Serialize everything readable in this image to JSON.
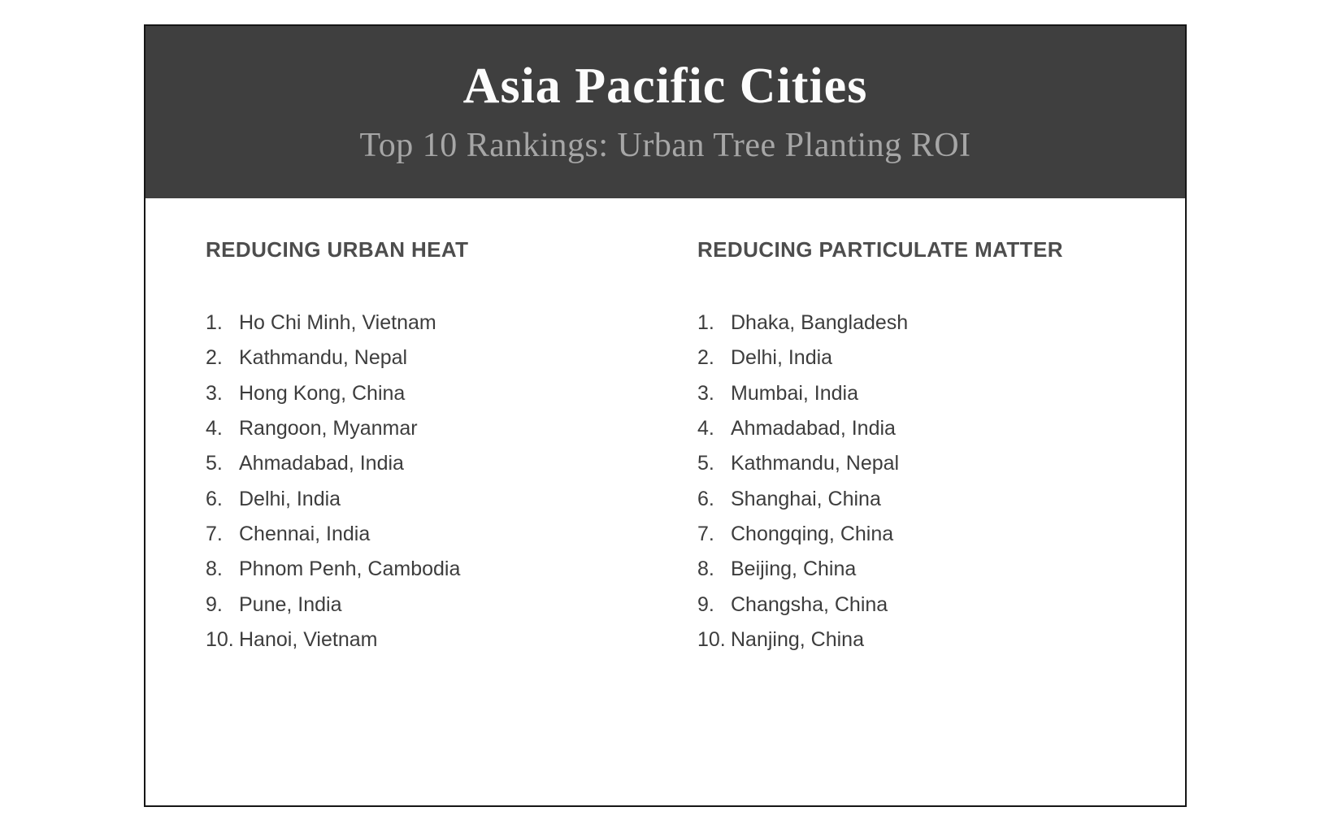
{
  "header": {
    "title": "Asia Pacific Cities",
    "subtitle": "Top 10 Rankings: Urban Tree Planting ROI",
    "background_color": "#3f3f3f",
    "title_color": "#fcfcfc",
    "subtitle_color": "#a6a6a6"
  },
  "columns": [
    {
      "heading": "REDUCING URBAN HEAT",
      "items": [
        {
          "rank": "1.",
          "city": "Ho Chi Minh, Vietnam"
        },
        {
          "rank": "2.",
          "city": "Kathmandu, Nepal"
        },
        {
          "rank": "3.",
          "city": "Hong Kong, China"
        },
        {
          "rank": "4.",
          "city": "Rangoon, Myanmar"
        },
        {
          "rank": "5.",
          "city": "Ahmadabad, India"
        },
        {
          "rank": "6.",
          "city": "Delhi, India"
        },
        {
          "rank": "7.",
          "city": "Chennai, India"
        },
        {
          "rank": "8.",
          "city": "Phnom Penh, Cambodia"
        },
        {
          "rank": "9.",
          "city": "Pune, India"
        },
        {
          "rank": "10.",
          "city": "Hanoi, Vietnam"
        }
      ]
    },
    {
      "heading": "REDUCING PARTICULATE MATTER",
      "items": [
        {
          "rank": "1.",
          "city": "Dhaka, Bangladesh"
        },
        {
          "rank": "2.",
          "city": "Delhi, India"
        },
        {
          "rank": "3.",
          "city": "Mumbai, India"
        },
        {
          "rank": "4.",
          "city": "Ahmadabad, India"
        },
        {
          "rank": "5.",
          "city": "Kathmandu, Nepal"
        },
        {
          "rank": "6.",
          "city": "Shanghai, China"
        },
        {
          "rank": "7.",
          "city": "Chongqing, China"
        },
        {
          "rank": "8.",
          "city": "Beijing, China"
        },
        {
          "rank": "9.",
          "city": "Changsha, China"
        },
        {
          "rank": "10.",
          "city": "Nanjing, China"
        }
      ]
    }
  ]
}
